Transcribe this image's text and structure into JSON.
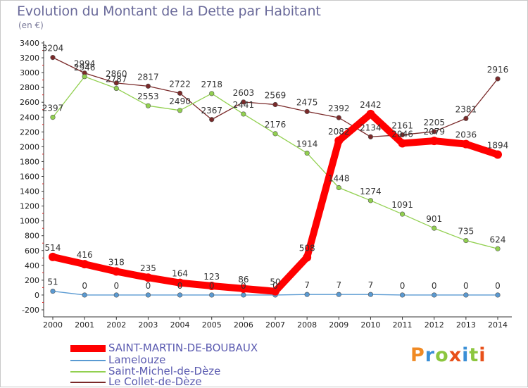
{
  "title": "Evolution du Montant de la Dette par Habitant",
  "subtitle": "(en €)",
  "logo": {
    "text": "Proxiti",
    "colors": [
      "#f08a24",
      "#3a8fd6",
      "#8cc63f",
      "#e8501a",
      "#3a8fd6",
      "#8cc63f",
      "#e8501a"
    ]
  },
  "chart_data": {
    "type": "line",
    "x": [
      "2000",
      "2001",
      "2002",
      "2003",
      "2004",
      "2005",
      "2006",
      "2007",
      "2008",
      "2009",
      "2010",
      "2011",
      "2012",
      "2013",
      "2014"
    ],
    "ylim": [
      -200,
      3400
    ],
    "yticks": [
      -200,
      0,
      200,
      400,
      600,
      800,
      1000,
      1200,
      1400,
      1600,
      1800,
      2000,
      2200,
      2400,
      2600,
      2800,
      3000,
      3200,
      3400
    ],
    "grid": false,
    "legend_position": "bottom-left",
    "series": [
      {
        "name": "SAINT-MARTIN-DE-BOUBAUX",
        "color": "#ff0000",
        "values": [
          514,
          416,
          318,
          235,
          164,
          123,
          86,
          50,
          508,
          2082,
          2442,
          2046,
          2079,
          2036,
          1894
        ]
      },
      {
        "name": "Lamelouze",
        "color": "#5a9ad2",
        "values": [
          51,
          0,
          0,
          0,
          0,
          0,
          0,
          0,
          7,
          7,
          7,
          0,
          0,
          0,
          0
        ]
      },
      {
        "name": "Saint-Michel-de-Dèze",
        "color": "#92d050",
        "values": [
          2397,
          2946,
          2787,
          2553,
          2490,
          2718,
          2441,
          2176,
          1914,
          1448,
          1274,
          1091,
          901,
          735,
          624
        ]
      },
      {
        "name": "Le Collet-de-Dèze",
        "color": "#7a2a2a",
        "values": [
          3204,
          2994,
          2860,
          2817,
          2722,
          2367,
          2603,
          2569,
          2475,
          2392,
          2134,
          2161,
          2205,
          2381,
          2916
        ]
      }
    ]
  }
}
